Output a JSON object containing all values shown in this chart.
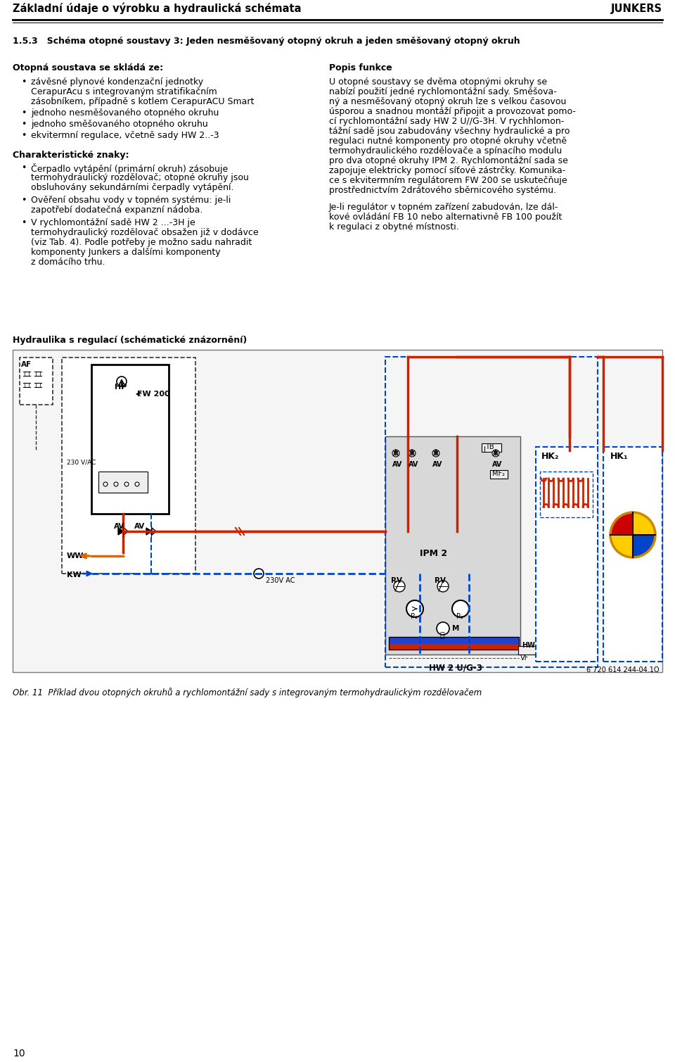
{
  "page_width": 9.6,
  "page_height": 15.09,
  "bg_color": "#ffffff",
  "header_title": "Základní údaje o výrobku a hydraulická schémata",
  "header_right": "JUNKERS",
  "section_title": "1.5.3   Schéma otopné soustavy 3: Jeden nesměšovaný otopný okruh a jeden směšovaný otopný okruh",
  "left_heading1": "Otopná soustava se skládá ze:",
  "left_b1_l1": "závěsné plynové kondenzační jednotky",
  "left_b1_l2": "CerapurAcu s integrovaným stratifikačním",
  "left_b1_l3": "zásobníkem, případně s kotlem CerapurACU Smart",
  "left_b2": "jednoho nesměšovaného otopného okruhu",
  "left_b3": "jednoho směšovaného otopného okruhu",
  "left_b4": "ekvitermní regulace, včetně sady HW 2..-3",
  "left_heading2": "Charakteristické znaky:",
  "left_c1_l1": "Čerpadlo vytápění (primární okruh) zásobuje",
  "left_c1_l2": "termohydraulický rozdělovač; otopné okruhy jsou",
  "left_c1_l3": "obsluhovány sekundárními čerpadly vytápění.",
  "left_c2_l1": "Ověření obsahu vody v topném systému: je-li",
  "left_c2_l2": "zapotřebí dodatečná expanzní nádoba.",
  "left_c3_l1": "V rychlomontážní sadě HW 2 ...-3H je",
  "left_c3_l2": "termohydraulický rozdělovač obsažen již v dodávce",
  "left_c3_l3": "(viz Tab. 4). Podle potřeby je možno sadu nahradit",
  "left_c3_l4": "komponenty Junkers a dalšími komponenty",
  "left_c3_l5": "z domácího trhu.",
  "right_heading1": "Popis funkce",
  "right_p1": [
    "U otopné soustavy se dvěma otopnými okruhy se",
    "nabízí použití jedné rychlomontážní sady. Směšova-",
    "ný a nesměšovaný otopný okruh lze s velkou časovou",
    "úsporou a snadnou montáží připojit a provozovat pomo-",
    "cí rychlomontážní sady HW 2 U//G-3H. V rychhlomon-",
    "tážní sadě jsou zabudovány všechny hydraulické a pro",
    "regulaci nutné komponenty pro otopné okruhy včetně",
    "termohydraulického rozdělovače a spínacího modulu",
    "pro dva otopné okruhy IPM 2. Rychlomontážní sada se",
    "zapojuje elektricky pomocí síťové zástrčky. Komunika-",
    "ce s ekvitermním regulátorem FW 200 se uskutečňuje",
    "prostřednictvím 2drátového sběrnicového systému."
  ],
  "right_p2": [
    "Je-li regulátor v topném zařízení zabudován, lze dál-",
    "kové ovládání FB 10 nebo alternativně FB 100 použít",
    "k regulaci z obytné místnosti."
  ],
  "diag_label": "Hydraulika s regulací (schématické znázornění)",
  "diag_ref": "6 720 614 244-04.1O",
  "diag_caption": "Obr. 11  Příklad dvou otopných okruhů a rychlomontážní sady s integrovaným termohydraulickým rozdělovačem",
  "page_number": "10"
}
